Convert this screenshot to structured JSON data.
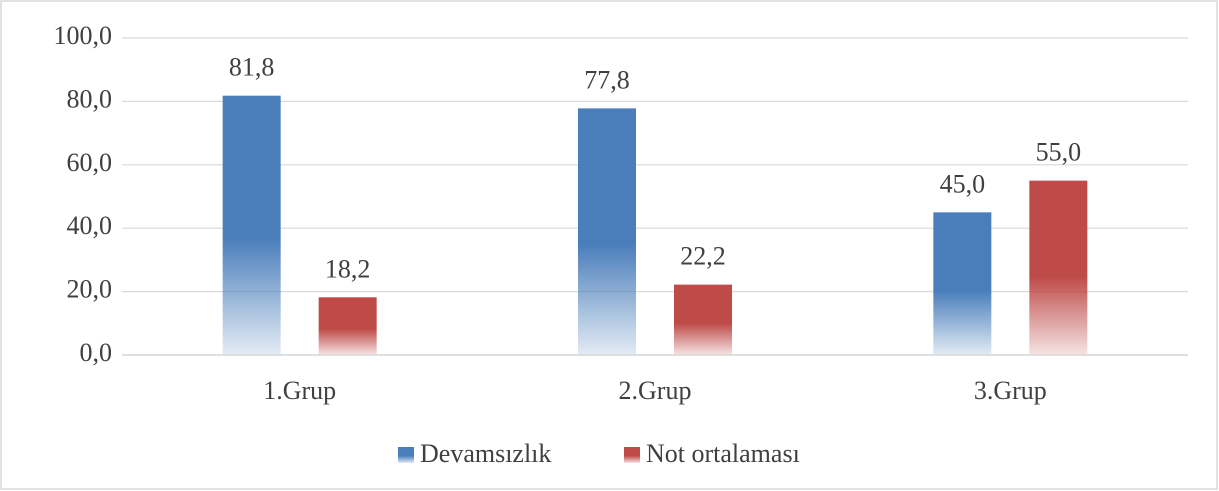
{
  "chart_data": {
    "type": "bar",
    "categories": [
      "1.Grup",
      "2.Grup",
      "3.Grup"
    ],
    "series": [
      {
        "name": "Devamsızlık",
        "color": "#4a7ebb",
        "values": [
          81.8,
          77.8,
          45.0
        ],
        "value_labels": [
          "81,8",
          "77,8",
          "45,0"
        ]
      },
      {
        "name": "Not ortalaması",
        "color": "#be4b48",
        "values": [
          18.2,
          22.2,
          55.0
        ],
        "value_labels": [
          "18,2",
          "22,2",
          "55,0"
        ]
      }
    ],
    "ylim": [
      0,
      100
    ],
    "yticks": [
      {
        "value": 0,
        "label": "0,0"
      },
      {
        "value": 20,
        "label": "20,0"
      },
      {
        "value": 40,
        "label": "40,0"
      },
      {
        "value": 60,
        "label": "60,0"
      },
      {
        "value": 80,
        "label": "80,0"
      },
      {
        "value": 100,
        "label": "100,0"
      }
    ],
    "grid": true,
    "legend": "bottom"
  }
}
